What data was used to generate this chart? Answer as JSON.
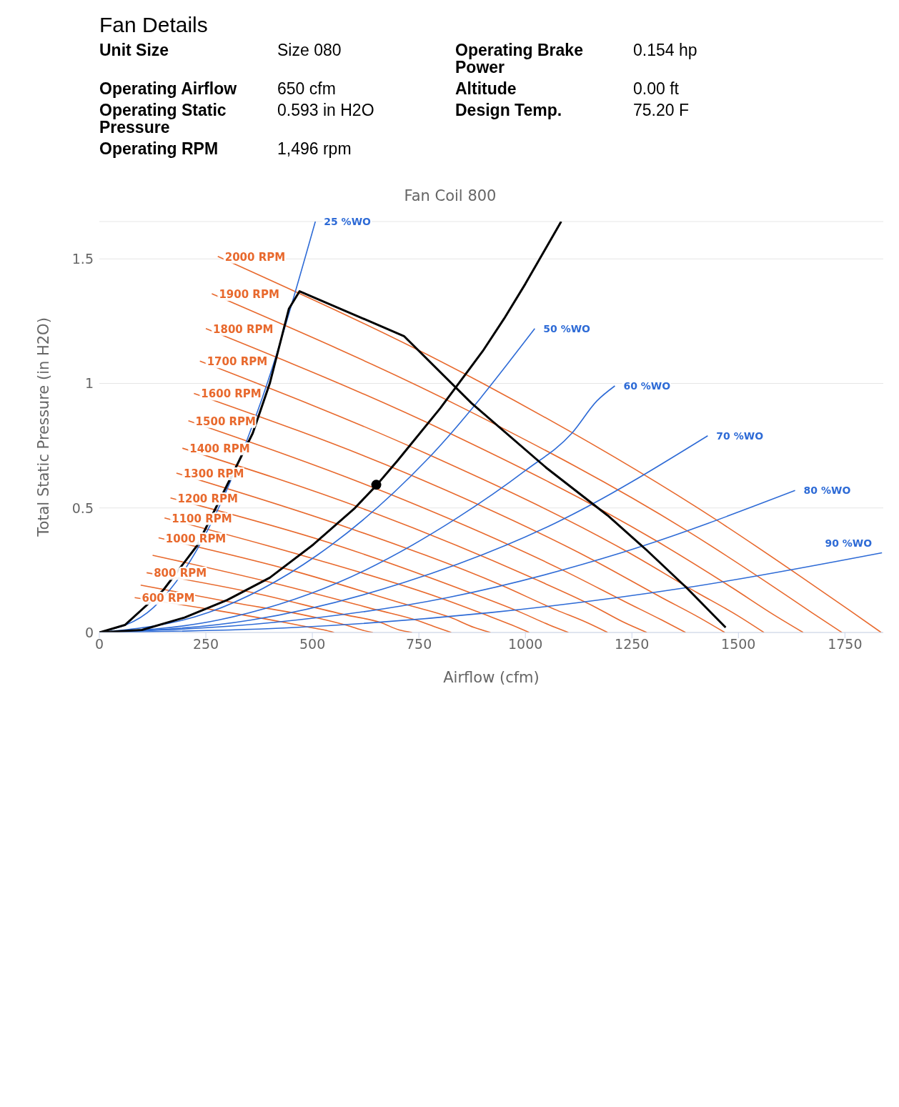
{
  "chart_data": {
    "type": "line",
    "title": "Fan Coil 800",
    "xlabel": "Airflow (cfm)",
    "ylabel": "Total Static Pressure (in H2O)",
    "annotations": [
      "Fan Details",
      "Unit Size",
      "Size 080",
      "Operating Brake Power",
      "0.154 hp",
      "Operating Airflow",
      "650 cfm",
      "Altitude",
      "0.00 ft",
      "Operating Static Pressure",
      "0.593 in H2O",
      "Design Temp.",
      "75.20 F",
      "Operating RPM",
      "1,496 rpm"
    ],
    "xlim": [
      0,
      1840
    ],
    "xticks": [
      0,
      250,
      500,
      750,
      1000,
      1250,
      1500,
      1750
    ],
    "ylim": [
      0,
      1.65
    ],
    "yticks": [
      0,
      0.5,
      1,
      1.5
    ],
    "grid": "y",
    "series": [
      {
        "name": "600 RPM",
        "color": "#e8692d",
        "x": [
          83,
          270,
          435,
          495,
          528,
          551
        ],
        "values": [
          0.14,
          0.09,
          0.04,
          0.02,
          0.01,
          0
        ]
      },
      {
        "color": "#e8692d",
        "x": [
          97,
          315,
          508,
          578,
          616,
          642
        ],
        "values": [
          0.19,
          0.12,
          0.06,
          0.03,
          0.01,
          0
        ]
      },
      {
        "name": "800 RPM",
        "color": "#e8692d",
        "x": [
          111,
          360,
          580,
          660,
          704,
          734
        ],
        "values": [
          0.24,
          0.16,
          0.07,
          0.04,
          0.01,
          0
        ]
      },
      {
        "color": "#e8692d",
        "x": [
          125,
          405,
          653,
          743,
          792,
          826
        ],
        "values": [
          0.31,
          0.2,
          0.09,
          0.05,
          0.02,
          0
        ]
      },
      {
        "name": "1000 RPM",
        "color": "#e8692d",
        "x": [
          139,
          450,
          725,
          825,
          880,
          918
        ],
        "values": [
          0.38,
          0.25,
          0.11,
          0.06,
          0.02,
          0
        ]
      },
      {
        "name": "1100 RPM",
        "color": "#e8692d",
        "x": [
          153,
          495,
          798,
          908,
          968,
          1009
        ],
        "values": [
          0.46,
          0.3,
          0.14,
          0.07,
          0.03,
          0
        ]
      },
      {
        "name": "1200 RPM",
        "color": "#e8692d",
        "x": [
          167,
          540,
          870,
          990,
          1056,
          1101
        ],
        "values": [
          0.54,
          0.36,
          0.16,
          0.08,
          0.03,
          0
        ]
      },
      {
        "name": "1300 RPM",
        "color": "#e8692d",
        "x": [
          181,
          585,
          943,
          1073,
          1144,
          1193
        ],
        "values": [
          0.64,
          0.42,
          0.19,
          0.09,
          0.04,
          0
        ]
      },
      {
        "name": "1400 RPM",
        "color": "#e8692d",
        "x": [
          195,
          630,
          1015,
          1155,
          1232,
          1285
        ],
        "values": [
          0.74,
          0.49,
          0.22,
          0.11,
          0.04,
          0
        ]
      },
      {
        "name": "1500 RPM",
        "color": "#e8692d",
        "x": [
          209,
          675,
          1088,
          1238,
          1320,
          1376
        ],
        "values": [
          0.85,
          0.56,
          0.25,
          0.12,
          0.05,
          0
        ]
      },
      {
        "name": "1600 RPM",
        "color": "#e8692d",
        "x": [
          222,
          720,
          1160,
          1320,
          1408,
          1468
        ],
        "values": [
          0.96,
          0.64,
          0.29,
          0.14,
          0.06,
          0
        ]
      },
      {
        "name": "1700 RPM",
        "color": "#e8692d",
        "x": [
          236,
          765,
          1233,
          1403,
          1496,
          1560
        ],
        "values": [
          1.09,
          0.72,
          0.33,
          0.16,
          0.07,
          0
        ]
      },
      {
        "name": "1800 RPM",
        "color": "#e8692d",
        "x": [
          250,
          810,
          1305,
          1485,
          1584,
          1652
        ],
        "values": [
          1.22,
          0.81,
          0.37,
          0.18,
          0.07,
          0
        ]
      },
      {
        "name": "1900 RPM",
        "color": "#e8692d",
        "x": [
          264,
          855,
          1378,
          1568,
          1672,
          1743
        ],
        "values": [
          1.36,
          0.9,
          0.41,
          0.2,
          0.08,
          0
        ]
      },
      {
        "name": "2000 RPM",
        "color": "#e8692d",
        "x": [
          278,
          900,
          1450,
          1650,
          1760,
          1835
        ],
        "values": [
          1.51,
          1.0,
          0.45,
          0.22,
          0.09,
          0
        ]
      },
      {
        "name": "25 %WO",
        "color": "#2e6bd6",
        "x": [
          0,
          127,
          254,
          380,
          507
        ],
        "values": [
          0,
          0.1,
          0.41,
          0.93,
          1.65
        ]
      },
      {
        "name": "50 %WO",
        "color": "#2e6bd6",
        "x": [
          0,
          256,
          511,
          767,
          1022
        ],
        "values": [
          0,
          0.08,
          0.31,
          0.69,
          1.22
        ]
      },
      {
        "name": "60 %WO",
        "color": "#2e6bd6",
        "x": [
          0,
          280,
          560,
          840,
          1000,
          1109,
          1168,
          1210
        ],
        "values": [
          0,
          0.05,
          0.2,
          0.46,
          0.65,
          0.8,
          0.93,
          0.99
        ]
      },
      {
        "name": "70 %WO",
        "color": "#2e6bd6",
        "x": [
          0,
          357,
          714,
          1071,
          1428
        ],
        "values": [
          0,
          0.05,
          0.2,
          0.44,
          0.79
        ]
      },
      {
        "name": "80 %WO",
        "color": "#2e6bd6",
        "x": [
          0,
          408,
          817,
          1225,
          1633
        ],
        "values": [
          0,
          0.04,
          0.14,
          0.32,
          0.57
        ]
      },
      {
        "name": "90 %WO",
        "color": "#2e6bd6",
        "x": [
          0,
          459,
          919,
          1378,
          1837
        ],
        "values": [
          0,
          0.02,
          0.08,
          0.18,
          0.32
        ]
      },
      {
        "color": "#000000",
        "x": [
          0,
          60,
          150,
          230,
          360,
          400,
          430,
          445,
          470,
          715,
          874,
          1050,
          1193,
          1285,
          1378,
          1470
        ],
        "values": [
          0,
          0.03,
          0.17,
          0.35,
          0.8,
          1.0,
          1.2,
          1.3,
          1.37,
          1.19,
          0.92,
          0.66,
          0.47,
          0.33,
          0.18,
          0.02
        ]
      },
      {
        "color": "#000000",
        "x": [
          0,
          100,
          200,
          300,
          400,
          500,
          600,
          650,
          700,
          800,
          900,
          950,
          1000,
          1084
        ],
        "values": [
          0,
          0.01,
          0.06,
          0.13,
          0.22,
          0.35,
          0.5,
          0.59,
          0.69,
          0.9,
          1.13,
          1.26,
          1.4,
          1.65
        ]
      },
      {
        "type": "scatter",
        "color": "#000000",
        "x": [
          650
        ],
        "values": [
          0.593
        ]
      }
    ]
  }
}
